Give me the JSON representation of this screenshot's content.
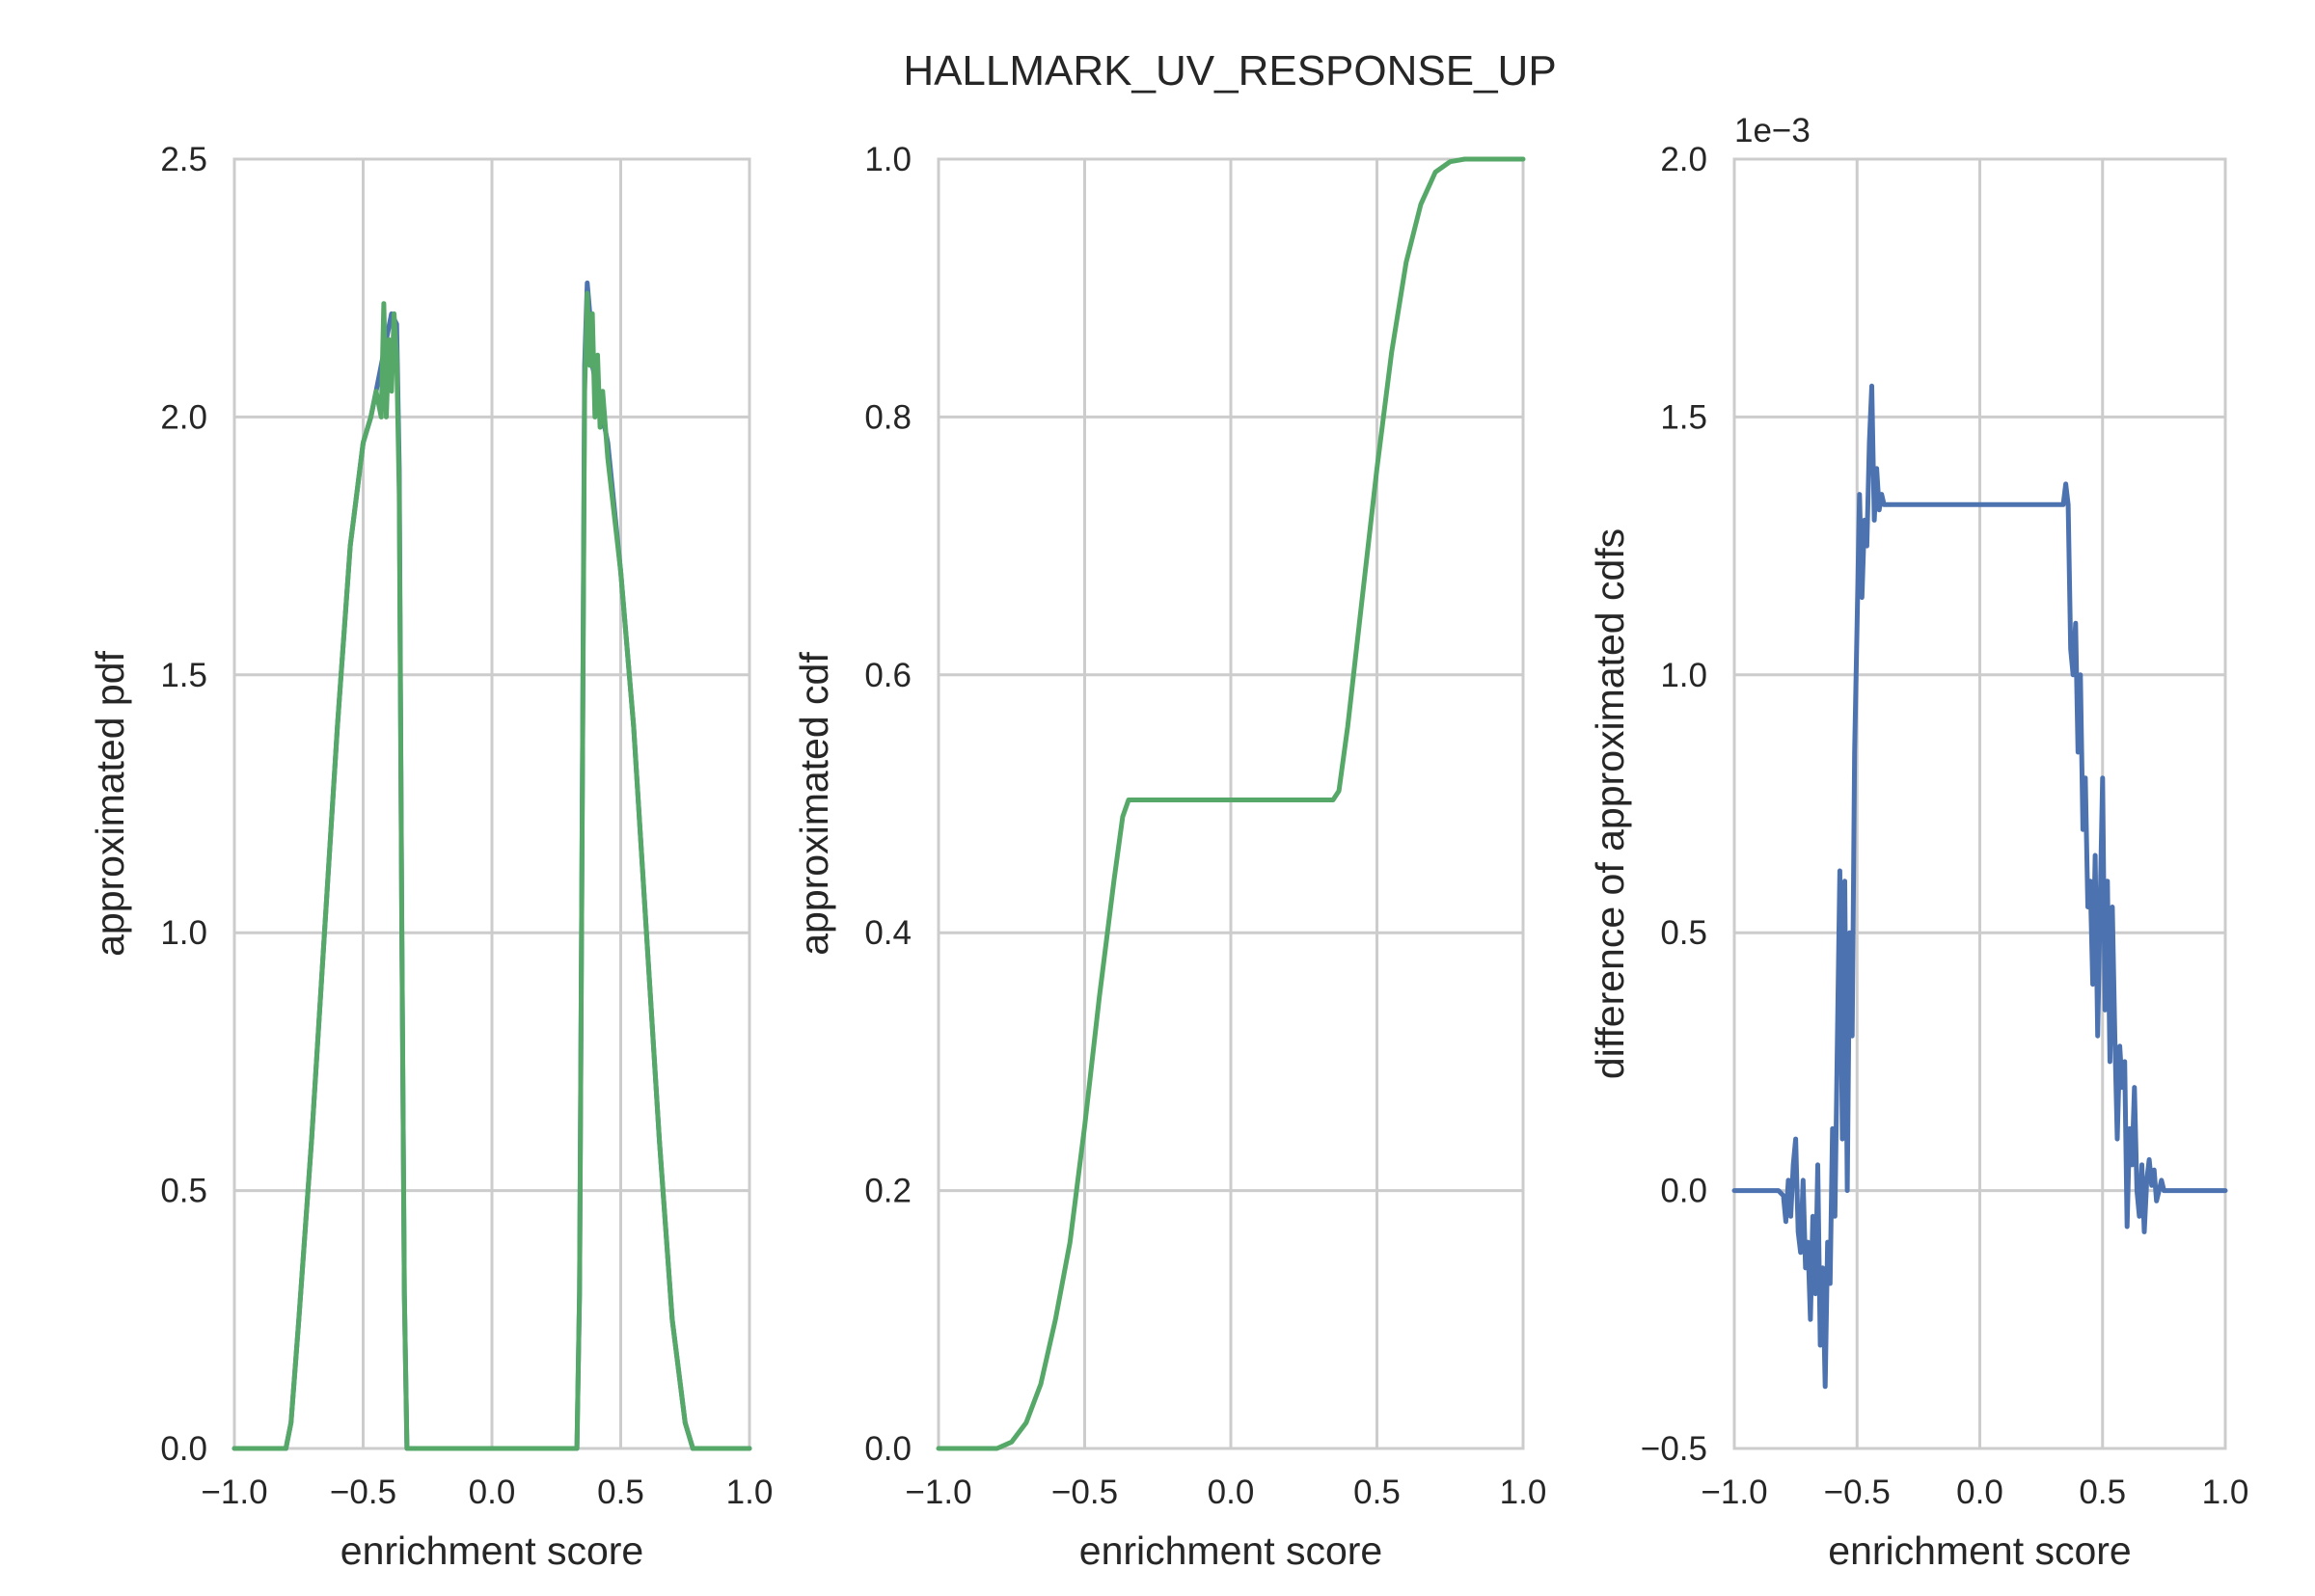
{
  "figure_title": "HALLMARK_UV_RESPONSE_UP",
  "colors": {
    "series_blue": "#4c72b0",
    "series_green": "#55a868",
    "grid": "#cccccc",
    "text": "#262626"
  },
  "chart_data": [
    {
      "type": "line",
      "title": "",
      "xlabel": "enrichment score",
      "ylabel": "approximated pdf",
      "xlim": [
        -1.0,
        1.0
      ],
      "ylim": [
        0.0,
        2.5
      ],
      "xticks": [
        "−1.0",
        "−0.5",
        "0.0",
        "0.5",
        "1.0"
      ],
      "yticks": [
        "0.0",
        "0.5",
        "1.0",
        "1.5",
        "2.0",
        "2.5"
      ],
      "grid": true,
      "series": [
        {
          "color": "#4c72b0",
          "x": [
            -1.0,
            -0.8,
            -0.78,
            -0.75,
            -0.7,
            -0.65,
            -0.6,
            -0.55,
            -0.5,
            -0.47,
            -0.45,
            -0.43,
            -0.41,
            -0.39,
            -0.37,
            -0.36,
            -0.35,
            -0.34,
            -0.33,
            0.33,
            0.34,
            0.35,
            0.36,
            0.37,
            0.38,
            0.39,
            0.41,
            0.43,
            0.45,
            0.5,
            0.55,
            0.6,
            0.65,
            0.7,
            0.75,
            0.78,
            1.0
          ],
          "y": [
            0.0,
            0.0,
            0.05,
            0.25,
            0.6,
            1.0,
            1.4,
            1.75,
            1.95,
            2.0,
            2.05,
            2.1,
            2.15,
            2.2,
            2.18,
            1.9,
            1.0,
            0.3,
            0.0,
            0.0,
            0.3,
            1.2,
            2.1,
            2.26,
            2.2,
            2.1,
            2.05,
            2.0,
            1.95,
            1.7,
            1.4,
            1.0,
            0.6,
            0.25,
            0.05,
            0.0,
            0.0
          ]
        },
        {
          "color": "#55a868",
          "x": [
            -1.0,
            -0.8,
            -0.78,
            -0.75,
            -0.7,
            -0.65,
            -0.6,
            -0.55,
            -0.5,
            -0.47,
            -0.45,
            -0.43,
            -0.42,
            -0.41,
            -0.4,
            -0.39,
            -0.38,
            -0.37,
            -0.36,
            -0.35,
            -0.34,
            -0.33,
            0.33,
            0.34,
            0.35,
            0.36,
            0.37,
            0.38,
            0.39,
            0.4,
            0.41,
            0.42,
            0.43,
            0.45,
            0.5,
            0.55,
            0.6,
            0.65,
            0.7,
            0.75,
            0.78,
            1.0
          ],
          "y": [
            0.0,
            0.0,
            0.05,
            0.25,
            0.6,
            1.0,
            1.4,
            1.75,
            1.95,
            2.0,
            2.05,
            2.0,
            2.22,
            2.0,
            2.15,
            2.05,
            2.2,
            2.12,
            1.85,
            1.0,
            0.3,
            0.0,
            0.0,
            0.3,
            1.2,
            2.05,
            2.24,
            2.1,
            2.2,
            2.0,
            2.12,
            1.98,
            2.05,
            1.92,
            1.7,
            1.4,
            1.0,
            0.6,
            0.25,
            0.05,
            0.0,
            0.0
          ]
        }
      ]
    },
    {
      "type": "line",
      "title": "",
      "xlabel": "enrichment score",
      "ylabel": "approximated cdf",
      "xlim": [
        -1.0,
        1.0
      ],
      "ylim": [
        0.0,
        1.0
      ],
      "xticks": [
        "−1.0",
        "−0.5",
        "0.0",
        "0.5",
        "1.0"
      ],
      "yticks": [
        "0.0",
        "0.2",
        "0.4",
        "0.6",
        "0.8",
        "1.0"
      ],
      "grid": true,
      "series": [
        {
          "color": "#55a868",
          "x": [
            -1.0,
            -0.8,
            -0.75,
            -0.7,
            -0.65,
            -0.6,
            -0.55,
            -0.5,
            -0.45,
            -0.4,
            -0.37,
            -0.35,
            0.35,
            0.37,
            0.4,
            0.45,
            0.5,
            0.55,
            0.6,
            0.65,
            0.7,
            0.75,
            0.8,
            1.0
          ],
          "y": [
            0.0,
            0.0,
            0.005,
            0.02,
            0.05,
            0.1,
            0.16,
            0.25,
            0.35,
            0.44,
            0.49,
            0.503,
            0.503,
            0.51,
            0.56,
            0.66,
            0.76,
            0.85,
            0.92,
            0.965,
            0.99,
            0.998,
            1.0,
            1.0
          ]
        }
      ]
    },
    {
      "type": "line",
      "title": "",
      "xlabel": "enrichment score",
      "ylabel": "difference of approximated cdfs",
      "y_scale_label": "1e−3",
      "xlim": [
        -1.0,
        1.0
      ],
      "ylim": [
        -0.5,
        2.0
      ],
      "xticks": [
        "−1.0",
        "−0.5",
        "0.0",
        "0.5",
        "1.0"
      ],
      "yticks": [
        "−0.5",
        "0.0",
        "0.5",
        "1.0",
        "1.5",
        "2.0"
      ],
      "grid": true,
      "series": [
        {
          "color": "#4c72b0",
          "x": [
            -1.0,
            -0.82,
            -0.8,
            -0.79,
            -0.78,
            -0.77,
            -0.76,
            -0.75,
            -0.74,
            -0.73,
            -0.72,
            -0.71,
            -0.7,
            -0.69,
            -0.68,
            -0.67,
            -0.66,
            -0.65,
            -0.64,
            -0.63,
            -0.62,
            -0.61,
            -0.6,
            -0.59,
            -0.58,
            -0.57,
            -0.56,
            -0.55,
            -0.54,
            -0.53,
            -0.52,
            -0.51,
            -0.5,
            -0.49,
            -0.48,
            -0.47,
            -0.46,
            -0.45,
            -0.44,
            -0.43,
            -0.42,
            -0.41,
            -0.4,
            -0.39,
            -0.385,
            -0.38,
            -0.37,
            -0.36,
            -0.35,
            -0.34,
            0.34,
            0.35,
            0.36,
            0.37,
            0.38,
            0.39,
            0.4,
            0.41,
            0.42,
            0.43,
            0.44,
            0.45,
            0.46,
            0.47,
            0.48,
            0.49,
            0.5,
            0.51,
            0.52,
            0.53,
            0.54,
            0.55,
            0.56,
            0.57,
            0.58,
            0.59,
            0.6,
            0.61,
            0.62,
            0.63,
            0.64,
            0.65,
            0.66,
            0.67,
            0.68,
            0.69,
            0.7,
            0.71,
            0.72,
            0.73,
            0.74,
            0.75,
            0.76,
            0.77,
            0.78,
            0.8,
            1.0
          ],
          "y": [
            0.0,
            0.0,
            -0.01,
            -0.06,
            0.02,
            -0.05,
            0.05,
            0.1,
            -0.08,
            -0.12,
            0.02,
            -0.15,
            -0.1,
            -0.25,
            -0.05,
            -0.2,
            0.05,
            -0.3,
            -0.15,
            -0.38,
            -0.1,
            -0.18,
            0.12,
            -0.05,
            0.3,
            0.62,
            0.1,
            0.6,
            0.0,
            0.5,
            0.3,
            0.85,
            1.1,
            1.35,
            1.15,
            1.3,
            1.25,
            1.45,
            1.56,
            1.3,
            1.4,
            1.32,
            1.35,
            1.33,
            1.33,
            1.33,
            1.33,
            1.33,
            1.33,
            1.33,
            1.33,
            1.37,
            1.33,
            1.05,
            1.0,
            1.1,
            0.85,
            1.0,
            0.7,
            0.8,
            0.55,
            0.6,
            0.4,
            0.65,
            0.3,
            0.55,
            0.8,
            0.35,
            0.6,
            0.25,
            0.55,
            0.3,
            0.1,
            0.28,
            0.2,
            0.25,
            -0.07,
            0.12,
            0.05,
            0.2,
            0.0,
            -0.05,
            0.05,
            -0.08,
            0.02,
            0.06,
            0.01,
            0.04,
            -0.02,
            0.0,
            0.02,
            0.0,
            0.0,
            0.0,
            0.0,
            0.0,
            0.0
          ]
        }
      ]
    }
  ]
}
